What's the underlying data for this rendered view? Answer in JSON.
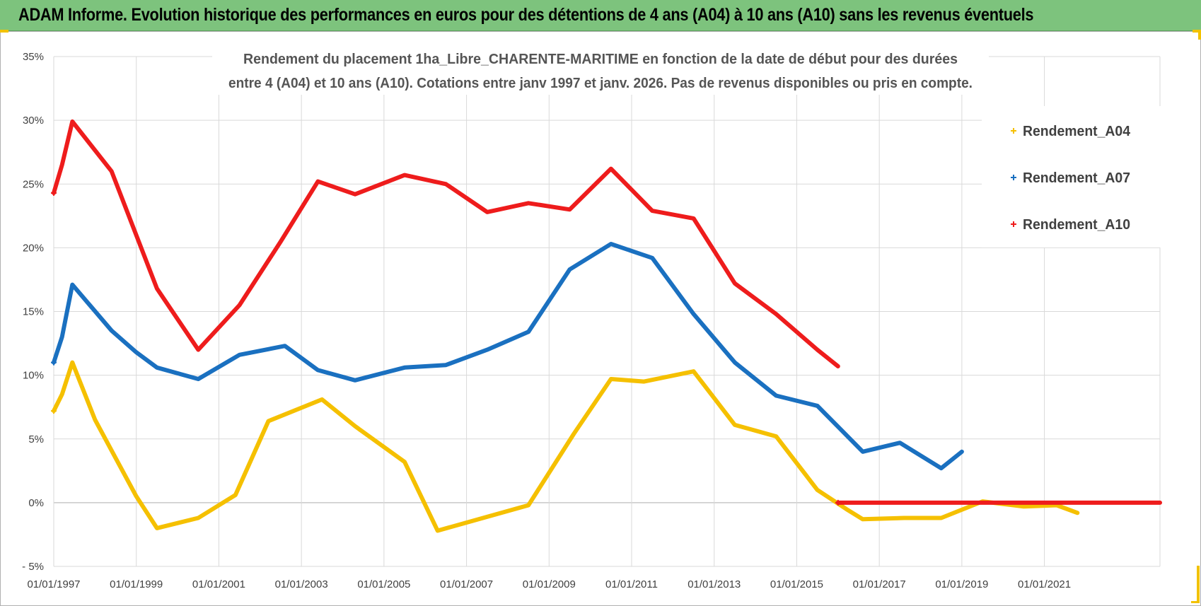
{
  "header": {
    "title": "ADAM Informe. Evolution historique des performances en euros pour des détentions de 4 ans (A04) à 10 ans (A10) sans les revenus éventuels"
  },
  "colors": {
    "banner": "#7dc37d",
    "a04": "#f5c000",
    "a07": "#1a70c0",
    "a10": "#ee1c1c",
    "grid": "#d9d9d9",
    "corner": "#f2c200"
  },
  "chart_data": {
    "type": "line",
    "title_lines": [
      "Rendement du placement 1ha_Libre_CHARENTE-MARITIME en fonction de la date de début pour des durées",
      "entre 4 (A04) et 10 ans (A10).  Cotations entre janv 1997 et janv. 2026.  Pas de revenus disponibles ou pris en compte."
    ],
    "x_axis": {
      "tick_labels": [
        "01/01/1997",
        "01/01/1999",
        "01/01/2001",
        "01/01/2003",
        "01/01/2005",
        "01/01/2007",
        "01/01/2009",
        "01/01/2011",
        "01/01/2013",
        "01/01/2015",
        "01/01/2017",
        "01/01/2019",
        "01/01/2021"
      ],
      "tick_years": [
        1997,
        1999,
        2001,
        2003,
        2005,
        2007,
        2009,
        2011,
        2013,
        2015,
        2017,
        2019,
        2021
      ],
      "range": [
        1997.0,
        2023.8
      ]
    },
    "y_axis": {
      "tick_labels": [
        "- 5%",
        "0%",
        "5%",
        "10%",
        "15%",
        "20%",
        "25%",
        "30%",
        "35%"
      ],
      "tick_values": [
        -5,
        0,
        5,
        10,
        15,
        20,
        25,
        30,
        35
      ],
      "range": [
        -5,
        35
      ]
    },
    "series": [
      {
        "name": "Rendement_A04",
        "color": "#f5c000",
        "points": [
          [
            1997.0,
            7.2
          ],
          [
            1997.2,
            8.5
          ],
          [
            1997.45,
            11.0
          ],
          [
            1998.0,
            6.5
          ],
          [
            1998.5,
            3.5
          ],
          [
            1999.0,
            0.5
          ],
          [
            1999.5,
            -2.0
          ],
          [
            2000.5,
            -1.2
          ],
          [
            2001.4,
            0.6
          ],
          [
            2002.2,
            6.4
          ],
          [
            2003.5,
            8.1
          ],
          [
            2004.3,
            6.0
          ],
          [
            2005.5,
            3.2
          ],
          [
            2006.3,
            -2.2
          ],
          [
            2007.4,
            -1.2
          ],
          [
            2008.5,
            -0.2
          ],
          [
            2009.6,
            5.4
          ],
          [
            2010.5,
            9.7
          ],
          [
            2011.3,
            9.5
          ],
          [
            2012.5,
            10.3
          ],
          [
            2013.5,
            6.1
          ],
          [
            2014.5,
            5.2
          ],
          [
            2015.5,
            1.0
          ],
          [
            2016.2,
            -0.5
          ],
          [
            2016.6,
            -1.3
          ],
          [
            2017.6,
            -1.2
          ],
          [
            2018.5,
            -1.2
          ],
          [
            2019.5,
            0.1
          ],
          [
            2020.5,
            -0.3
          ],
          [
            2021.3,
            -0.2
          ],
          [
            2021.8,
            -0.8
          ]
        ]
      },
      {
        "name": "Rendement_A07",
        "color": "#1a70c0",
        "points": [
          [
            1997.0,
            11.0
          ],
          [
            1997.2,
            13.0
          ],
          [
            1997.45,
            17.1
          ],
          [
            1998.4,
            13.5
          ],
          [
            1999.0,
            11.8
          ],
          [
            1999.5,
            10.6
          ],
          [
            2000.5,
            9.7
          ],
          [
            2001.5,
            11.6
          ],
          [
            2002.6,
            12.3
          ],
          [
            2003.4,
            10.4
          ],
          [
            2004.3,
            9.6
          ],
          [
            2005.5,
            10.6
          ],
          [
            2006.5,
            10.8
          ],
          [
            2007.5,
            12.0
          ],
          [
            2008.5,
            13.4
          ],
          [
            2009.5,
            18.3
          ],
          [
            2010.5,
            20.3
          ],
          [
            2011.5,
            19.2
          ],
          [
            2012.5,
            14.8
          ],
          [
            2013.5,
            11.0
          ],
          [
            2014.5,
            8.4
          ],
          [
            2015.5,
            7.6
          ],
          [
            2016.6,
            4.0
          ],
          [
            2017.5,
            4.7
          ],
          [
            2018.5,
            2.7
          ],
          [
            2019.0,
            4.0
          ]
        ]
      },
      {
        "name": "Rendement_A10",
        "color": "#ee1c1c",
        "points": [
          [
            1997.0,
            24.3
          ],
          [
            1997.2,
            26.5
          ],
          [
            1997.45,
            29.9
          ],
          [
            1998.4,
            26.0
          ],
          [
            1999.5,
            16.8
          ],
          [
            2000.5,
            12.0
          ],
          [
            2001.5,
            15.5
          ],
          [
            2002.5,
            20.5
          ],
          [
            2003.4,
            25.2
          ],
          [
            2004.3,
            24.2
          ],
          [
            2005.5,
            25.7
          ],
          [
            2006.5,
            25.0
          ],
          [
            2007.5,
            22.8
          ],
          [
            2008.5,
            23.5
          ],
          [
            2009.5,
            23.0
          ],
          [
            2010.5,
            26.2
          ],
          [
            2011.5,
            22.9
          ],
          [
            2012.5,
            22.3
          ],
          [
            2013.5,
            17.2
          ],
          [
            2014.5,
            14.8
          ],
          [
            2015.5,
            12.0
          ],
          [
            2016.0,
            10.7
          ]
        ]
      },
      {
        "name": "Rendement_A10_flat",
        "color": "#ee1c1c",
        "points": [
          [
            2016.0,
            0.0
          ],
          [
            2023.8,
            0.0
          ]
        ]
      }
    ],
    "legend": [
      {
        "label": "Rendement_A04",
        "color": "#f5c000"
      },
      {
        "label": "Rendement_A07",
        "color": "#1a70c0"
      },
      {
        "label": "Rendement_A10",
        "color": "#ee1c1c"
      }
    ],
    "legend_position": "top-right",
    "grid": true
  }
}
